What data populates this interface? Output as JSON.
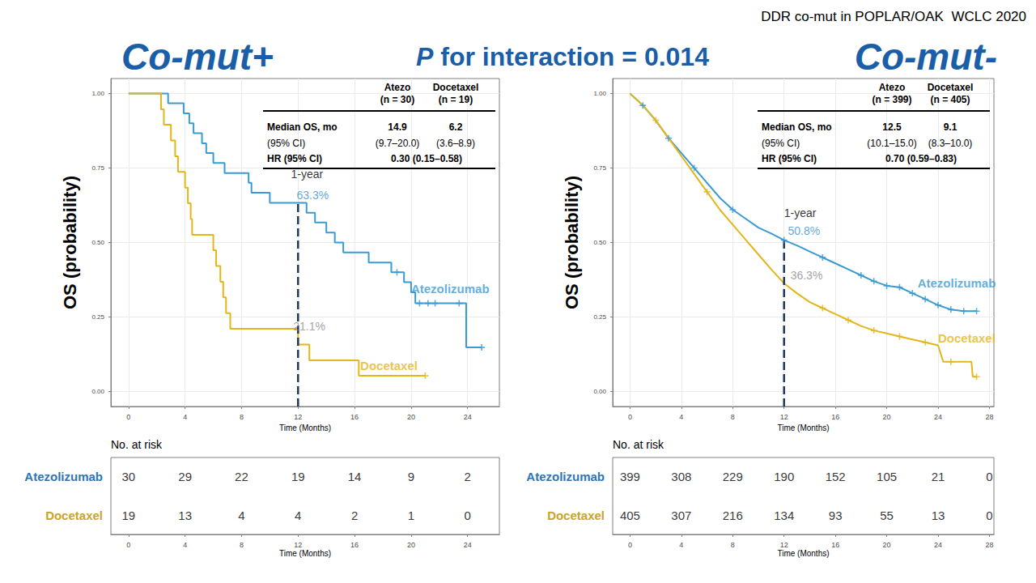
{
  "header": {
    "note": "DDR co-mut in POPLAR/OAK  WCLC 2020",
    "subtitle": "P for interaction = 0.014"
  },
  "chart_data": [
    {
      "type": "line",
      "title": "Co-mut+",
      "x_label": "Time (Months)",
      "y_label": "OS (probability)",
      "xlim": [
        -1.25,
        26.25
      ],
      "xticks": [
        0,
        4,
        8,
        12,
        16,
        20,
        24
      ],
      "ylim": [
        -0.05,
        1.05
      ],
      "yticks": [
        {
          "value": 0,
          "label": "0.00"
        },
        0.25,
        {
          "value": 0.5,
          "label": "0.50"
        },
        0.75,
        {
          "value": 1,
          "label": "1.00"
        }
      ],
      "grid": true,
      "series": [
        {
          "name": "Atezolizumab",
          "color": "#3a9ad2",
          "line_style": "step",
          "marker": "plus",
          "x": [
            0,
            2.8,
            3.9,
            4.3,
            4.6,
            5.2,
            5.5,
            6.0,
            6.8,
            8.5,
            8.7,
            10.0,
            12.6,
            13.2,
            14.0,
            14.6,
            15.2,
            17.0,
            18.6,
            19.5,
            20.0,
            20.3,
            23.9,
            25.0
          ],
          "values": [
            1,
            0.967,
            0.933,
            0.9,
            0.867,
            0.833,
            0.8,
            0.767,
            0.733,
            0.7,
            0.667,
            0.633,
            0.6,
            0.567,
            0.533,
            0.5,
            0.467,
            0.433,
            0.4,
            0.367,
            0.333,
            0.296,
            0.148,
            0.148
          ],
          "censored": {
            "x": [
              19.0,
              20.6,
              21.2,
              21.7,
              23.4,
              25.0
            ],
            "values": [
              0.4,
              0.296,
              0.296,
              0.296,
              0.296,
              0.148
            ]
          },
          "name_at": [
            20.0,
            0.344
          ]
        },
        {
          "name": "Docetaxel",
          "color": "#e3b61a",
          "line_style": "step",
          "marker": "plus",
          "x": [
            0,
            2.3,
            2.5,
            3.0,
            3.3,
            3.5,
            4.0,
            4.2,
            4.4,
            4.5,
            6.0,
            6.2,
            6.5,
            6.7,
            6.9,
            7.2,
            12.0,
            12.8,
            16.3,
            21.0
          ],
          "values": [
            1,
            0.947,
            0.895,
            0.842,
            0.789,
            0.737,
            0.684,
            0.632,
            0.579,
            0.526,
            0.474,
            0.421,
            0.368,
            0.316,
            0.263,
            0.211,
            0.158,
            0.105,
            0.053,
            0.053
          ],
          "censored": {
            "x": [
              21.0
            ],
            "values": [
              0.053
            ]
          },
          "name_at": [
            16.4,
            0.087
          ]
        }
      ],
      "landmark": {
        "x": 12,
        "y": [
          -0.05,
          0.633
        ]
      },
      "annotations": [
        {
          "text": "1-year",
          "x": 11.5,
          "y": 0.73,
          "color": "#000000"
        },
        {
          "text": "63.3%",
          "x": 11.9,
          "y": 0.66,
          "color": "#3d8fd1"
        },
        {
          "text": "21.1%",
          "x": 11.65,
          "y": 0.22,
          "color": "#8c8c8c"
        }
      ],
      "stats_table": {
        "header": [
          [
            "Atezo",
            "(n = 30)"
          ],
          [
            "Docetaxel",
            "(n = 19)"
          ]
        ],
        "rows": [
          [
            "Median OS, mo",
            "14.9",
            "6.2"
          ],
          [
            "(95% CI)",
            "(9.7–20.0)",
            "(3.6–8.9)"
          ],
          [
            "HR (95% CI)",
            "0.30 (0.15–0.58)"
          ]
        ]
      },
      "risk_table": {
        "title": "No. at risk",
        "x_label": "Time (Months)",
        "times": [
          0,
          4,
          8,
          12,
          16,
          20,
          24
        ],
        "rows": [
          {
            "name": "Atezolizumab",
            "color": "#2e75b6",
            "values": [
              30,
              29,
              22,
              19,
              14,
              9,
              2
            ]
          },
          {
            "name": "Docetaxel",
            "color": "#c9a42a",
            "values": [
              19,
              13,
              4,
              4,
              2,
              1,
              0
            ]
          }
        ]
      }
    },
    {
      "type": "line",
      "title": "Co-mut-",
      "x_label": "Time (Months)",
      "y_label": "OS (probability)",
      "xlim": [
        -1.35,
        28.35
      ],
      "xticks": [
        0,
        4,
        8,
        12,
        16,
        20,
        24,
        28
      ],
      "ylim": [
        -0.05,
        1.05
      ],
      "yticks": [
        {
          "value": 0,
          "label": "0.00"
        },
        0.25,
        {
          "value": 0.5,
          "label": "0.50"
        },
        0.75,
        {
          "value": 1,
          "label": "1.00"
        }
      ],
      "grid": true,
      "series": [
        {
          "name": "Atezolizumab",
          "color": "#3a9ad2",
          "line_style": "solid",
          "marker": "plus",
          "x": [
            0,
            1,
            2,
            3,
            4,
            5,
            6,
            7,
            8,
            9,
            10,
            11,
            12,
            13,
            14,
            15,
            16,
            17,
            18,
            19,
            20,
            21,
            22,
            23,
            24,
            25,
            26,
            27
          ],
          "values": [
            1,
            0.96,
            0.91,
            0.85,
            0.8,
            0.75,
            0.7,
            0.65,
            0.61,
            0.58,
            0.55,
            0.53,
            0.508,
            0.49,
            0.47,
            0.45,
            0.43,
            0.41,
            0.39,
            0.37,
            0.355,
            0.35,
            0.33,
            0.31,
            0.29,
            0.275,
            0.27,
            0.27
          ],
          "censored": {
            "x": [
              1,
              3,
              5,
              8,
              12,
              15,
              18,
              19,
              20,
              21,
              22,
              23,
              24,
              25,
              26,
              27
            ],
            "values": [
              0.96,
              0.85,
              0.75,
              0.61,
              0.508,
              0.45,
              0.39,
              0.37,
              0.355,
              0.35,
              0.33,
              0.31,
              0.29,
              0.275,
              0.27,
              0.27
            ]
          },
          "name_at": [
            22.4,
            0.365
          ]
        },
        {
          "name": "Docetaxel",
          "color": "#e3b61a",
          "line_style": "solid",
          "marker": "plus",
          "x": [
            0,
            1,
            2,
            3,
            4,
            5,
            6,
            7,
            8,
            9,
            10,
            11,
            12,
            13,
            14,
            15,
            16,
            17,
            18,
            19,
            20,
            21,
            22,
            23,
            24,
            24.4,
            25,
            26.6,
            26.7,
            27
          ],
          "values": [
            1,
            0.96,
            0.91,
            0.85,
            0.79,
            0.73,
            0.67,
            0.61,
            0.56,
            0.51,
            0.46,
            0.41,
            0.363,
            0.33,
            0.3,
            0.28,
            0.26,
            0.24,
            0.22,
            0.205,
            0.195,
            0.185,
            0.175,
            0.165,
            0.155,
            0.1,
            0.1,
            0.1,
            0.05,
            0.05
          ],
          "censored": {
            "x": [
              2,
              6,
              15,
              17,
              19,
              21,
              23,
              25,
              27
            ],
            "values": [
              0.91,
              0.67,
              0.28,
              0.24,
              0.205,
              0.185,
              0.165,
              0.1,
              0.05
            ]
          },
          "name_at": [
            24.0,
            0.18
          ]
        }
      ],
      "landmark": {
        "x": 12,
        "y": [
          -0.05,
          0.52
        ]
      },
      "annotations": [
        {
          "text": "1-year",
          "x": 12.0,
          "y": 0.6,
          "color": "#000000"
        },
        {
          "text": "50.8%",
          "x": 12.3,
          "y": 0.54,
          "color": "#3d8fd1"
        },
        {
          "text": "36.3%",
          "x": 12.5,
          "y": 0.39,
          "color": "#8c8c8c"
        }
      ],
      "stats_table": {
        "header": [
          [
            "Atezo",
            "(n = 399)"
          ],
          [
            "Docetaxel",
            "(n = 405)"
          ]
        ],
        "rows": [
          [
            "Median OS, mo",
            "12.5",
            "9.1"
          ],
          [
            "(95% CI)",
            "(10.1–15.0)",
            "(8.3–10.0)"
          ],
          [
            "HR (95% CI)",
            "0.70 (0.59–0.83)"
          ]
        ]
      },
      "risk_table": {
        "title": "No. at risk",
        "x_label": "Time (Months)",
        "times": [
          0,
          4,
          8,
          12,
          16,
          20,
          24,
          28
        ],
        "rows": [
          {
            "name": "Atezolizumab",
            "color": "#2e75b6",
            "values": [
              399,
              308,
              229,
              190,
              152,
              105,
              21,
              0
            ]
          },
          {
            "name": "Docetaxel",
            "color": "#c9a42a",
            "values": [
              405,
              307,
              216,
              134,
              93,
              55,
              13,
              0
            ]
          }
        ]
      }
    }
  ]
}
